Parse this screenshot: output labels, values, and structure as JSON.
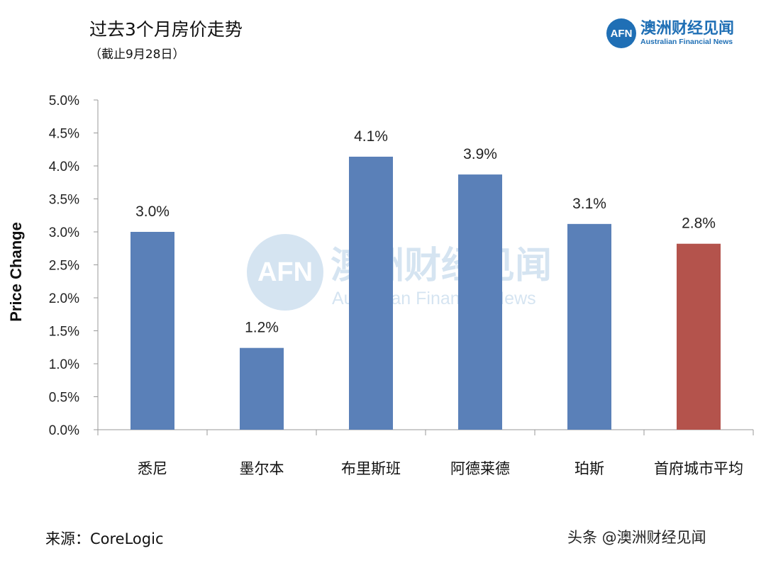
{
  "header": {
    "title": "过去3个月房价走势",
    "subtitle": "（截止9月28日）"
  },
  "logo": {
    "mark": "AFN",
    "name_cn": "澳洲财经见闻",
    "name_en": "Australian Financial News"
  },
  "footer": {
    "source": "来源：CoreLogic",
    "credit": "头条 @澳洲财经见闻"
  },
  "chart_data": {
    "type": "bar",
    "title": "过去3个月房价走势",
    "xlabel": "",
    "ylabel": "Price Change",
    "categories": [
      "悉尼",
      "墨尔本",
      "布里斯班",
      "阿德莱德",
      "珀斯",
      "首府城市平均"
    ],
    "values": [
      3.0,
      1.2,
      4.1,
      3.9,
      3.1,
      2.8
    ],
    "plotted_values": [
      3.0,
      1.24,
      4.14,
      3.87,
      3.12,
      2.82
    ],
    "data_labels": [
      "3.0%",
      "1.2%",
      "4.1%",
      "3.9%",
      "3.1%",
      "2.8%"
    ],
    "colors": [
      "#5a80b8",
      "#5a80b8",
      "#5a80b8",
      "#5a80b8",
      "#5a80b8",
      "#b4534c"
    ],
    "ylim": [
      0,
      5
    ],
    "yticks": [
      "0.0%",
      "0.5%",
      "1.0%",
      "1.5%",
      "2.0%",
      "2.5%",
      "3.0%",
      "3.5%",
      "4.0%",
      "4.5%",
      "5.0%"
    ],
    "grid": false,
    "legend": "none"
  }
}
